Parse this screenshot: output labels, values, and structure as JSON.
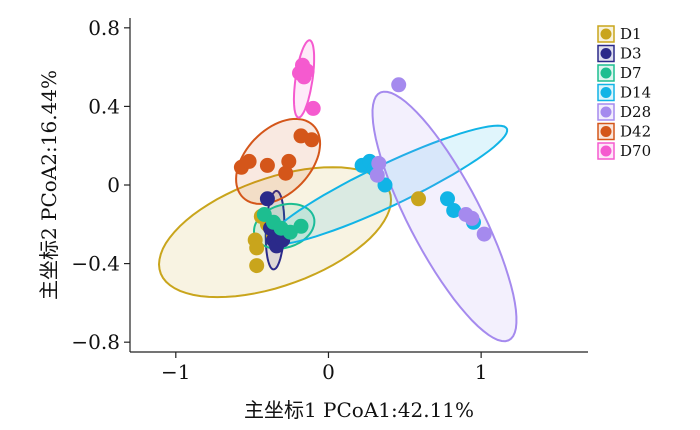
{
  "chart_data": {
    "type": "scatter",
    "xlabel": "主坐标1 PCoA1:42.11%",
    "ylabel": "主坐标2 PCoA2:16.44%",
    "xlim": [
      -1.3,
      1.7
    ],
    "ylim": [
      -0.85,
      0.85
    ],
    "xticks": [
      -1,
      0,
      1
    ],
    "xtick_labels": [
      "−1",
      "0",
      "1"
    ],
    "yticks": [
      -0.8,
      -0.4,
      0,
      0.4,
      0.8
    ],
    "ytick_labels": [
      "−0.8",
      "−0.4",
      "0",
      "0.4",
      "0.8"
    ],
    "grid": false,
    "legend_position": "right",
    "series": [
      {
        "name": "D1",
        "color": "#C9A51C",
        "points": [
          [
            -0.48,
            -0.28
          ],
          [
            -0.47,
            -0.32
          ],
          [
            -0.47,
            -0.41
          ],
          [
            -0.44,
            -0.16
          ],
          [
            -0.4,
            -0.2
          ],
          [
            -0.36,
            -0.26
          ],
          [
            0.59,
            -0.07
          ]
        ],
        "ellipse": {
          "cx": -0.35,
          "cy": -0.24,
          "rx": 0.78,
          "ry": 0.28,
          "angle": 14
        }
      },
      {
        "name": "D3",
        "color": "#2B2A8A",
        "points": [
          [
            -0.4,
            -0.07
          ],
          [
            -0.38,
            -0.22
          ],
          [
            -0.36,
            -0.28
          ],
          [
            -0.34,
            -0.31
          ],
          [
            -0.3,
            -0.28
          ]
        ],
        "ellipse": {
          "cx": -0.35,
          "cy": -0.23,
          "rx": 0.06,
          "ry": 0.2,
          "angle": -3
        }
      },
      {
        "name": "D7",
        "color": "#1DBE90",
        "points": [
          [
            -0.42,
            -0.15
          ],
          [
            -0.36,
            -0.19
          ],
          [
            -0.31,
            -0.22
          ],
          [
            -0.25,
            -0.24
          ],
          [
            -0.18,
            -0.21
          ]
        ],
        "ellipse": {
          "cx": -0.29,
          "cy": -0.21,
          "rx": 0.2,
          "ry": 0.11,
          "angle": 10
        }
      },
      {
        "name": "D14",
        "color": "#11B4E6",
        "points": [
          [
            0.22,
            0.1
          ],
          [
            0.27,
            0.12
          ],
          [
            0.3,
            0.08
          ],
          [
            0.37,
            0.0
          ],
          [
            0.78,
            -0.07
          ],
          [
            0.82,
            -0.13
          ],
          [
            0.95,
            -0.19
          ]
        ],
        "ellipse": {
          "cx": 0.39,
          "cy": 0.0,
          "rx": 0.83,
          "ry": 0.11,
          "angle": 20
        }
      },
      {
        "name": "D28",
        "color": "#A58AEE",
        "points": [
          [
            0.46,
            0.51
          ],
          [
            0.33,
            0.11
          ],
          [
            0.32,
            0.05
          ],
          [
            0.94,
            -0.17
          ],
          [
            1.02,
            -0.25
          ],
          [
            0.9,
            -0.15
          ]
        ],
        "ellipse": {
          "cx": 0.76,
          "cy": -0.16,
          "rx": 0.76,
          "ry": 0.22,
          "angle": -55
        }
      },
      {
        "name": "D42",
        "color": "#D4561A",
        "points": [
          [
            -0.57,
            0.09
          ],
          [
            -0.52,
            0.12
          ],
          [
            -0.4,
            0.1
          ],
          [
            -0.26,
            0.12
          ],
          [
            -0.28,
            0.06
          ],
          [
            -0.18,
            0.25
          ],
          [
            -0.11,
            0.23
          ]
        ],
        "ellipse": {
          "cx": -0.33,
          "cy": 0.12,
          "rx": 0.3,
          "ry": 0.18,
          "angle": 30
        }
      },
      {
        "name": "D70",
        "color": "#F55ACF",
        "points": [
          [
            -0.19,
            0.57
          ],
          [
            -0.17,
            0.61
          ],
          [
            -0.16,
            0.55
          ],
          [
            -0.14,
            0.58
          ],
          [
            -0.1,
            0.39
          ]
        ],
        "ellipse": {
          "cx": -0.16,
          "cy": 0.54,
          "rx": 0.2,
          "ry": 0.055,
          "angle": 79
        }
      }
    ]
  }
}
